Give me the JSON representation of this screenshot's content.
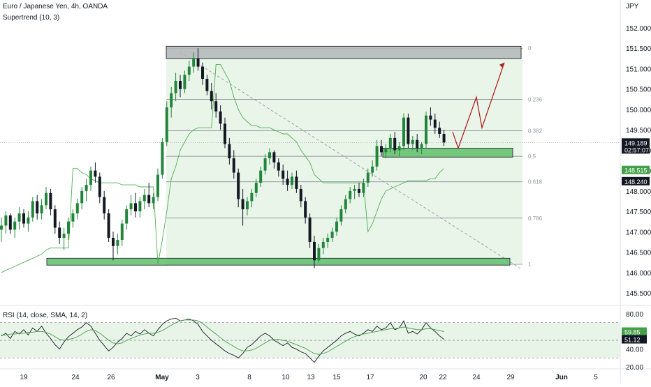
{
  "header": {
    "title": "Euro / Japanese Yen, 4h, OANDA",
    "indicator": "Supertrend (10, 3)",
    "currency": "JPY"
  },
  "colors": {
    "up": "#22863a",
    "down": "#131722",
    "support_zone": "#5fbf6b",
    "resistance_zone": "#b2b5b8",
    "projection": "#b22222",
    "fib_fill": "#e3f1e3",
    "supertrend": "#4caf50",
    "rsi": "#131722",
    "rsi_ma": "#43a047",
    "rsi_band": "#e3f1e3"
  },
  "chart_data": [
    {
      "type": "candlestick",
      "title": "Euro / Japanese Yen, 4h, OANDA",
      "ylabel": "JPY",
      "ylim": [
        145.3,
        152.45
      ],
      "yticks": [
        "152.000",
        "151.500",
        "151.000",
        "150.500",
        "150.000",
        "149.500",
        "149.000",
        "148.500",
        "148.000",
        "147.500",
        "147.000",
        "146.500",
        "146.000",
        "145.500"
      ],
      "xticks": [
        "19",
        "24",
        "26",
        "May",
        "3",
        "8",
        "10",
        "13",
        "15",
        "17",
        "20",
        "22",
        "24",
        "29",
        "Jun",
        "5"
      ],
      "candles_ohlc": [
        [
          147.05,
          147.35,
          146.75,
          147.15
        ],
        [
          147.15,
          147.5,
          146.95,
          147.4
        ],
        [
          147.4,
          147.45,
          146.95,
          147.05
        ],
        [
          147.05,
          147.35,
          146.85,
          147.25
        ],
        [
          147.25,
          147.6,
          147.05,
          147.45
        ],
        [
          147.45,
          147.55,
          147.1,
          147.2
        ],
        [
          147.2,
          147.5,
          147.0,
          147.35
        ],
        [
          147.35,
          147.85,
          147.25,
          147.75
        ],
        [
          147.75,
          147.9,
          147.3,
          147.45
        ],
        [
          147.45,
          147.8,
          147.3,
          147.65
        ],
        [
          147.65,
          148.1,
          147.55,
          147.95
        ],
        [
          147.95,
          148.05,
          147.4,
          147.55
        ],
        [
          147.55,
          147.65,
          146.95,
          147.1
        ],
        [
          147.1,
          147.25,
          146.7,
          146.85
        ],
        [
          146.85,
          147.1,
          146.55,
          146.95
        ],
        [
          146.95,
          147.35,
          146.8,
          147.25
        ],
        [
          147.25,
          147.55,
          147.1,
          147.45
        ],
        [
          147.45,
          147.8,
          147.3,
          147.7
        ],
        [
          147.7,
          148.1,
          147.55,
          148.0
        ],
        [
          148.0,
          148.3,
          147.75,
          148.15
        ],
        [
          148.15,
          148.6,
          148.0,
          148.5
        ],
        [
          148.5,
          148.7,
          148.2,
          148.35
        ],
        [
          148.35,
          148.45,
          147.7,
          147.85
        ],
        [
          147.85,
          148.0,
          147.3,
          147.45
        ],
        [
          147.45,
          147.55,
          146.75,
          146.85
        ],
        [
          146.85,
          147.0,
          146.3,
          146.65
        ],
        [
          146.65,
          146.95,
          146.45,
          146.8
        ],
        [
          146.8,
          147.3,
          146.65,
          147.2
        ],
        [
          147.2,
          147.65,
          147.05,
          147.55
        ],
        [
          147.55,
          147.9,
          147.4,
          147.7
        ],
        [
          147.7,
          147.95,
          147.35,
          147.5
        ],
        [
          147.5,
          147.85,
          147.35,
          147.75
        ],
        [
          147.75,
          148.05,
          147.55,
          147.9
        ],
        [
          147.9,
          148.2,
          147.6,
          147.7
        ],
        [
          147.7,
          147.95,
          147.55,
          147.85
        ],
        [
          147.85,
          148.55,
          147.75,
          148.4
        ],
        [
          148.4,
          149.3,
          148.3,
          149.2
        ],
        [
          149.2,
          150.2,
          149.1,
          150.05
        ],
        [
          150.05,
          150.55,
          149.8,
          150.4
        ],
        [
          150.4,
          150.9,
          150.2,
          150.7
        ],
        [
          150.7,
          150.85,
          150.3,
          150.5
        ],
        [
          150.5,
          150.95,
          150.4,
          150.85
        ],
        [
          150.85,
          151.2,
          150.7,
          151.05
        ],
        [
          151.05,
          151.4,
          150.9,
          151.25
        ],
        [
          151.25,
          151.5,
          150.95,
          151.05
        ],
        [
          151.05,
          151.15,
          150.6,
          150.75
        ],
        [
          150.75,
          150.85,
          150.35,
          150.45
        ],
        [
          150.45,
          150.65,
          150.0,
          150.2
        ],
        [
          150.2,
          150.4,
          149.8,
          149.95
        ],
        [
          149.95,
          150.1,
          149.5,
          149.65
        ],
        [
          149.65,
          149.8,
          149.05,
          149.15
        ],
        [
          149.15,
          149.3,
          148.65,
          148.8
        ],
        [
          148.8,
          149.0,
          148.3,
          148.45
        ],
        [
          148.45,
          148.55,
          147.6,
          147.8
        ],
        [
          147.8,
          148.05,
          147.15,
          147.55
        ],
        [
          147.55,
          147.85,
          147.4,
          147.75
        ],
        [
          147.75,
          148.05,
          147.6,
          147.95
        ],
        [
          147.95,
          148.3,
          147.85,
          148.2
        ],
        [
          148.2,
          148.6,
          148.1,
          148.5
        ],
        [
          148.5,
          148.9,
          148.4,
          148.8
        ],
        [
          148.8,
          149.05,
          148.65,
          148.95
        ],
        [
          148.95,
          149.0,
          148.55,
          148.7
        ],
        [
          148.7,
          148.8,
          148.35,
          148.5
        ],
        [
          148.5,
          148.65,
          148.15,
          148.3
        ],
        [
          148.3,
          148.5,
          148.0,
          148.15
        ],
        [
          148.15,
          148.45,
          148.05,
          148.35
        ],
        [
          148.35,
          148.5,
          147.95,
          148.05
        ],
        [
          148.05,
          148.15,
          147.6,
          147.75
        ],
        [
          147.75,
          147.85,
          147.2,
          147.35
        ],
        [
          147.35,
          147.45,
          146.6,
          146.75
        ],
        [
          146.75,
          146.9,
          146.1,
          146.3
        ],
        [
          146.3,
          146.7,
          146.25,
          146.6
        ],
        [
          146.6,
          146.85,
          146.45,
          146.75
        ],
        [
          146.75,
          146.95,
          146.6,
          146.85
        ],
        [
          146.85,
          147.1,
          146.75,
          147.0
        ],
        [
          147.0,
          147.35,
          146.9,
          147.25
        ],
        [
          147.25,
          147.65,
          147.15,
          147.55
        ],
        [
          147.55,
          147.9,
          147.45,
          147.8
        ],
        [
          147.8,
          148.1,
          147.7,
          148.0
        ],
        [
          148.0,
          148.15,
          147.8,
          148.05
        ],
        [
          148.05,
          148.2,
          147.85,
          147.95
        ],
        [
          147.95,
          148.3,
          147.85,
          148.2
        ],
        [
          148.2,
          148.55,
          148.1,
          148.45
        ],
        [
          148.45,
          148.75,
          148.35,
          148.6
        ],
        [
          148.6,
          149.25,
          148.5,
          149.1
        ],
        [
          149.1,
          149.25,
          148.85,
          148.95
        ],
        [
          148.95,
          149.15,
          148.8,
          149.05
        ],
        [
          149.05,
          149.4,
          148.95,
          149.3
        ],
        [
          149.3,
          149.45,
          148.9,
          149.0
        ],
        [
          149.0,
          149.2,
          148.85,
          149.1
        ],
        [
          149.1,
          149.9,
          149.0,
          149.8
        ],
        [
          149.8,
          149.9,
          149.05,
          149.15
        ],
        [
          149.15,
          149.35,
          149.0,
          149.25
        ],
        [
          149.25,
          149.4,
          148.95,
          149.05
        ],
        [
          149.05,
          149.2,
          148.9,
          149.15
        ],
        [
          149.15,
          149.95,
          149.05,
          149.85
        ],
        [
          149.85,
          150.05,
          149.6,
          149.75
        ],
        [
          149.75,
          149.9,
          149.4,
          149.55
        ],
        [
          149.55,
          149.7,
          149.3,
          149.4
        ],
        [
          149.4,
          149.5,
          149.1,
          149.19
        ]
      ],
      "supertrend": [
        146.0,
        146.05,
        146.1,
        146.15,
        146.2,
        146.25,
        146.3,
        146.35,
        146.4,
        146.45,
        146.55,
        146.6,
        146.6,
        146.6,
        146.6,
        146.6,
        148.55,
        148.55,
        148.45,
        148.4,
        148.3,
        148.25,
        148.2,
        148.2,
        148.2,
        148.2,
        148.2,
        148.15,
        148.15,
        148.15,
        148.15,
        148.1,
        148.1,
        148.1,
        148.1,
        146.2,
        146.8,
        147.5,
        148.3,
        148.6,
        149.0,
        149.2,
        149.4,
        149.5,
        149.55,
        149.55,
        149.55,
        149.55,
        151.1,
        151.1,
        150.9,
        150.7,
        150.3,
        150.0,
        149.8,
        149.7,
        149.6,
        149.6,
        149.55,
        149.55,
        149.55,
        149.5,
        149.45,
        149.4,
        149.4,
        149.3,
        149.2,
        149.0,
        148.85,
        148.7,
        148.4,
        148.3,
        148.2,
        148.2,
        148.2,
        148.2,
        148.2,
        148.2,
        148.2,
        148.2,
        148.2,
        148.2,
        147.0,
        147.2,
        147.5,
        147.8,
        148.0,
        148.05,
        148.1,
        148.15,
        148.2,
        148.25,
        148.25,
        148.25,
        148.25,
        148.25,
        148.3,
        148.3,
        148.45,
        148.55
      ],
      "fibonacci": {
        "levels": [
          "0",
          "0.236",
          "0.382",
          "0.5",
          "0.618",
          "0.786",
          "1"
        ],
        "high": 151.5,
        "low": 146.2
      },
      "zones": [
        {
          "name": "resistance",
          "top": 151.55,
          "bottom": 151.25
        },
        {
          "name": "support-upper",
          "top": 149.05,
          "bottom": 148.83
        },
        {
          "name": "support-lower",
          "top": 146.35,
          "bottom": 146.18
        }
      ],
      "projection_path": [
        149.45,
        149.05,
        150.3,
        149.55,
        151.15
      ],
      "price_tags": [
        {
          "label": "149.189",
          "sublabel": "02:57:07",
          "value": 149.189,
          "color": "#131722"
        },
        {
          "label": "148.515",
          "value": 148.515,
          "color": "#43a047"
        },
        {
          "label": "148.240",
          "value": 148.24,
          "color": "#131722"
        }
      ]
    },
    {
      "type": "line",
      "title": "RSI (14, close, SMA, 14, 2)",
      "ylim": [
        18,
        83
      ],
      "yticks": [
        "80.00",
        "60.00",
        "40.00",
        "20.00"
      ],
      "band": [
        30,
        70
      ],
      "midline": 50,
      "rsi": [
        55,
        58,
        52,
        60,
        57,
        62,
        56,
        64,
        60,
        66,
        58,
        52,
        45,
        40,
        48,
        54,
        58,
        62,
        65,
        70,
        66,
        58,
        50,
        44,
        38,
        42,
        48,
        52,
        58,
        55,
        60,
        57,
        62,
        58,
        55,
        62,
        68,
        72,
        74,
        75,
        72,
        73,
        74,
        72,
        68,
        60,
        55,
        50,
        46,
        42,
        38,
        35,
        33,
        30,
        35,
        42,
        45,
        50,
        55,
        58,
        55,
        50,
        47,
        44,
        47,
        42,
        40,
        37,
        35,
        30,
        25,
        32,
        38,
        42,
        46,
        50,
        55,
        58,
        60,
        57,
        55,
        58,
        62,
        60,
        66,
        62,
        64,
        70,
        62,
        64,
        72,
        58,
        60,
        57,
        62,
        70,
        64,
        60,
        55,
        51.12
      ],
      "rsi_ma": [
        56,
        56,
        57,
        57,
        58,
        58,
        59,
        59,
        60,
        60,
        59,
        57,
        54,
        51,
        50,
        51,
        52,
        54,
        57,
        60,
        62,
        61,
        58,
        54,
        50,
        47,
        46,
        47,
        50,
        52,
        54,
        56,
        57,
        58,
        58,
        59,
        61,
        64,
        67,
        70,
        72,
        73,
        73,
        73,
        72,
        69,
        65,
        61,
        57,
        53,
        49,
        46,
        43,
        40,
        38,
        38,
        39,
        41,
        44,
        47,
        50,
        51,
        51,
        50,
        49,
        47,
        45,
        43,
        41,
        38,
        35,
        34,
        35,
        37,
        40,
        43,
        46,
        49,
        52,
        54,
        56,
        57,
        58,
        59,
        60,
        61,
        62,
        63,
        63,
        64,
        65,
        64,
        63,
        62,
        62,
        63,
        63,
        62,
        61,
        59.85
      ],
      "value_tags": [
        {
          "label": "59.85",
          "value": 59.85,
          "color": "#43a047"
        },
        {
          "label": "51.12",
          "value": 51.12,
          "color": "#131722"
        }
      ]
    }
  ]
}
